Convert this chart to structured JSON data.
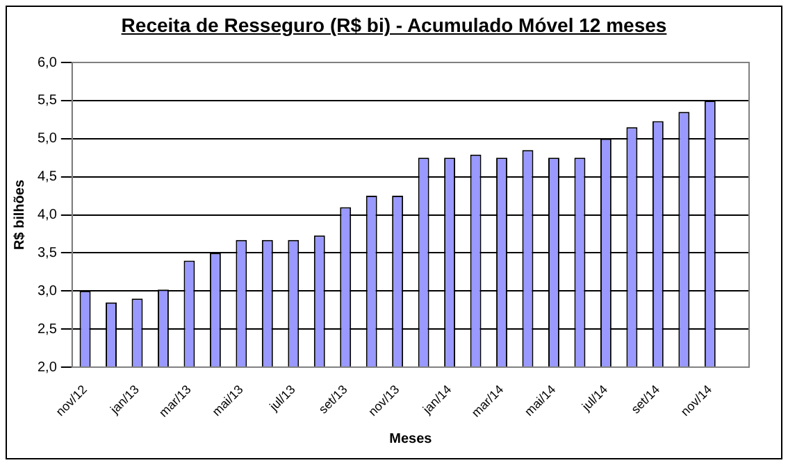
{
  "chart_data": {
    "type": "bar",
    "title": "Receita de Resseguro (R$ bi) - Acumulado Móvel 12 meses",
    "xlabel": "Meses",
    "ylabel": "R$ bilhões",
    "categories": [
      "nov/12",
      null,
      "jan/13",
      null,
      "mar/13",
      null,
      "mai/13",
      null,
      "jul/13",
      null,
      "set/13",
      null,
      "nov/13",
      null,
      "jan/14",
      null,
      "mar/14",
      null,
      "mai/14",
      null,
      "jul/14",
      null,
      "set/14",
      null,
      "nov/14",
      null
    ],
    "values": [
      3.0,
      2.85,
      2.9,
      3.02,
      3.4,
      3.5,
      3.67,
      3.67,
      3.67,
      3.73,
      4.1,
      4.25,
      4.25,
      4.75,
      4.75,
      4.79,
      4.75,
      4.85,
      4.75,
      4.75,
      5.0,
      5.15,
      5.23,
      5.35,
      5.5,
      null
    ],
    "color": "#9999ff",
    "ylim": [
      2,
      6
    ],
    "yticks": [
      {
        "value": 2,
        "label": "2,0"
      },
      {
        "value": 2.5,
        "label": "2,5"
      },
      {
        "value": 3,
        "label": "3,0"
      },
      {
        "value": 3.5,
        "label": "3,5"
      },
      {
        "value": 4,
        "label": "4,0"
      },
      {
        "value": 4.5,
        "label": "4,5"
      },
      {
        "value": 5,
        "label": "5,0"
      },
      {
        "value": 5.5,
        "label": "5,5"
      },
      {
        "value": 6,
        "label": "6,0"
      }
    ],
    "grid": "y",
    "legend": false
  }
}
